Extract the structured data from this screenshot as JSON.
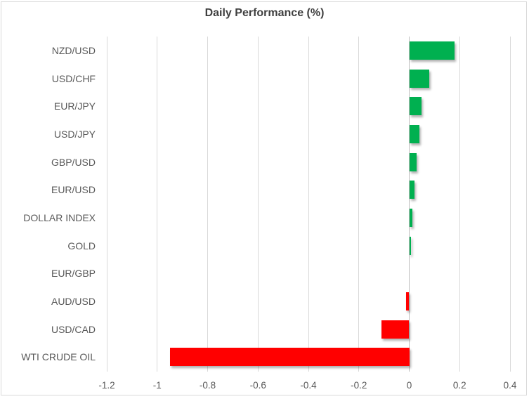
{
  "chart": {
    "title": "Daily Performance (%)"
  },
  "chart_data": {
    "type": "bar",
    "orientation": "horizontal",
    "title": "Daily Performance (%)",
    "categories": [
      "NZD/USD",
      "USD/CHF",
      "EUR/JPY",
      "USD/JPY",
      "GBP/USD",
      "EUR/USD",
      "DOLLAR INDEX",
      "GOLD",
      "EUR/GBP",
      "AUD/USD",
      "USD/CAD",
      "WTI CRUDE OIL"
    ],
    "values": [
      0.18,
      0.08,
      0.05,
      0.04,
      0.03,
      0.02,
      0.013,
      0.007,
      0,
      -0.013,
      -0.11,
      -0.95
    ],
    "xlabel": "",
    "ylabel": "",
    "xlim": [
      -1.2,
      0.4
    ],
    "xticks": [
      -1.2,
      -1,
      -0.8,
      -0.6,
      -0.4,
      -0.2,
      0,
      0.2,
      0.4
    ],
    "xtick_labels": [
      "-1.2",
      "-1",
      "-0.8",
      "-0.6",
      "-0.4",
      "-0.2",
      "0",
      "0.2",
      "0.4"
    ],
    "grid": true,
    "legend": false,
    "colors": {
      "positive_bar": "#00b050",
      "negative_bar": "#ff0000",
      "gridline": "#d9d9d9",
      "zero_line": "#bfbfbf",
      "title_text": "#3f3f3f",
      "axis_text": "#595959",
      "frame_border": "#d9d9d9",
      "background": "#ffffff"
    }
  }
}
